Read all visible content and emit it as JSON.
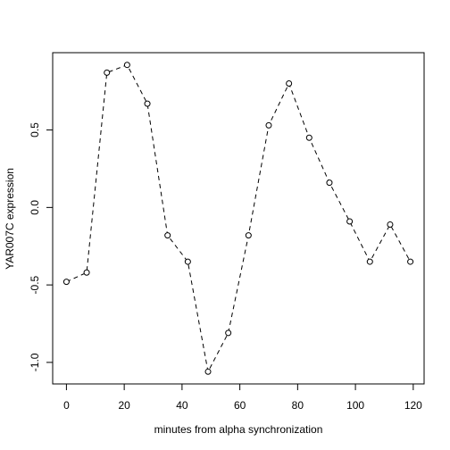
{
  "chart_data": {
    "type": "line",
    "xlabel": "minutes from alpha synchronization",
    "ylabel": "YAR007C expression",
    "x": [
      0,
      7,
      14,
      21,
      28,
      35,
      42,
      49,
      56,
      63,
      70,
      77,
      84,
      91,
      98,
      105,
      112,
      119
    ],
    "series": [
      {
        "values": [
          -0.48,
          -0.42,
          0.87,
          0.92,
          0.67,
          -0.18,
          -0.35,
          -1.06,
          -0.81,
          -0.18,
          0.53,
          0.8,
          0.45,
          0.16,
          -0.09,
          -0.35,
          -0.11,
          -0.35
        ],
        "color": "#000000"
      }
    ],
    "xlim": [
      -4.76,
      123.76
    ],
    "ylim": [
      -1.139,
      0.999
    ],
    "xticks": [
      0,
      20,
      40,
      60,
      80,
      100,
      120
    ],
    "yticks": [
      {
        "value": -1.0,
        "label": "-1.0"
      },
      -0.5,
      {
        "value": 0.0,
        "label": "0.0"
      },
      0.5
    ]
  }
}
